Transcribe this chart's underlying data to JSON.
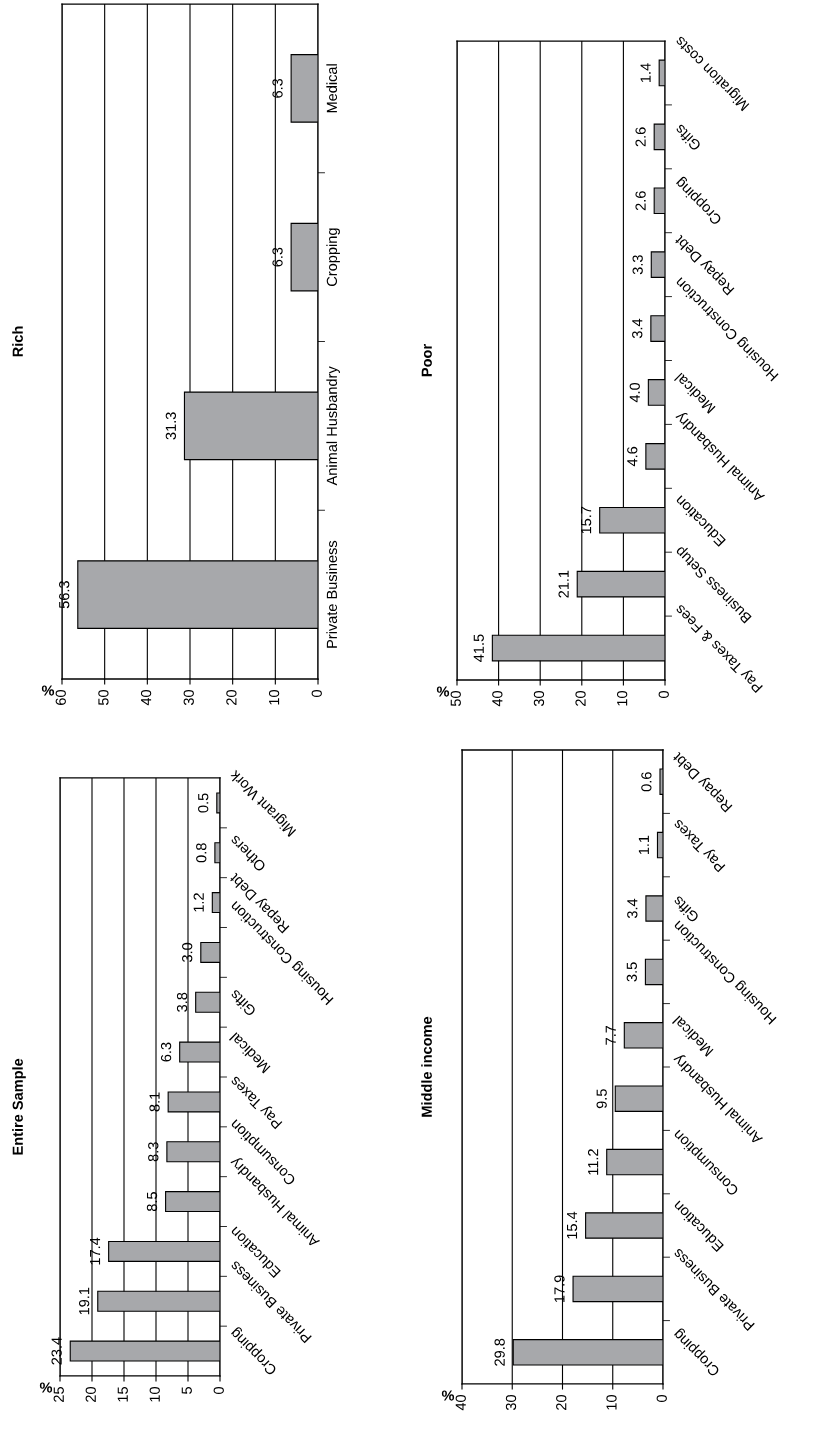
{
  "chart_data": [
    {
      "type": "bar",
      "title": "Rich",
      "xlabel": "%",
      "orientation": "horizontal",
      "categories": [
        "Medical",
        "Cropping",
        "Animal Husbandry",
        "Private Business"
      ],
      "values": [
        6.3,
        6.3,
        31.3,
        56.3
      ],
      "value_labels": [
        "6.3",
        "6.3",
        "31.3",
        "56.3"
      ],
      "color": "#a7a8ab",
      "xlim": [
        60,
        0
      ],
      "xticks": [
        60,
        50,
        40,
        30,
        20,
        10,
        0
      ],
      "grid": "x"
    },
    {
      "type": "bar",
      "title": "Poor",
      "xlabel": "%",
      "orientation": "horizontal",
      "categories": [
        "Migration costs",
        "Gifts",
        "Cropping",
        "Repay Debt",
        "Housing Construction",
        "Medical",
        "Animal Husbandry",
        "Education",
        "Business Setup",
        "Pay Taxes & Fees"
      ],
      "values": [
        1.4,
        2.6,
        2.6,
        3.3,
        3.4,
        4.0,
        4.6,
        15.7,
        21.1,
        41.5
      ],
      "value_labels": [
        "1.4",
        "2.6",
        "2.6",
        "3.3",
        "3.4",
        "4.0",
        "4.6",
        "15.7",
        "21.1",
        "41.5"
      ],
      "color": "#a7a8ab",
      "xlim": [
        50,
        0
      ],
      "xticks": [
        50,
        40,
        30,
        20,
        10,
        0
      ],
      "grid": "x"
    },
    {
      "type": "bar",
      "title": "Entire Sample",
      "xlabel": "%",
      "orientation": "horizontal",
      "categories": [
        "Migrant Work",
        "Others",
        "Repay Debt",
        "Housing Construction",
        "Gifts",
        "Medical",
        "Pay Taxes",
        "Consumption",
        "Animal Husbandry",
        "Education",
        "Private Business",
        "Cropping"
      ],
      "values": [
        0.5,
        0.8,
        1.2,
        3.0,
        3.8,
        6.3,
        8.1,
        8.3,
        8.5,
        17.4,
        19.1,
        23.4
      ],
      "value_labels": [
        "0.5",
        "0.8",
        "1.2",
        "3.0",
        "3.8",
        "6.3",
        "8.1",
        "8.3",
        "8.5",
        "17.4",
        "19.1",
        "23.4"
      ],
      "color": "#a7a8ab",
      "xlim": [
        25,
        0
      ],
      "xticks": [
        25,
        20,
        15,
        10,
        5,
        0
      ],
      "grid": "x"
    },
    {
      "type": "bar",
      "title": "Middle income",
      "xlabel": "%",
      "orientation": "horizontal",
      "categories": [
        "Repay Debt",
        "Pay Taxes",
        "Gifts",
        "Housing Construction",
        "Medical",
        "Animal Husbandry",
        "Consumption",
        "Education",
        "Private Business",
        "Cropping"
      ],
      "values": [
        0.6,
        1.1,
        3.4,
        3.5,
        7.7,
        9.5,
        11.2,
        15.4,
        17.9,
        29.8
      ],
      "value_labels": [
        "0.6",
        "1.1",
        "3.4",
        "3.5",
        "7.7",
        "9.5",
        "11.2",
        "15.4",
        "17.9",
        "29.8"
      ],
      "color": "#a7a8ab",
      "xlim": [
        40,
        0
      ],
      "xticks": [
        40,
        30,
        20,
        10,
        0
      ],
      "grid": "x"
    }
  ]
}
